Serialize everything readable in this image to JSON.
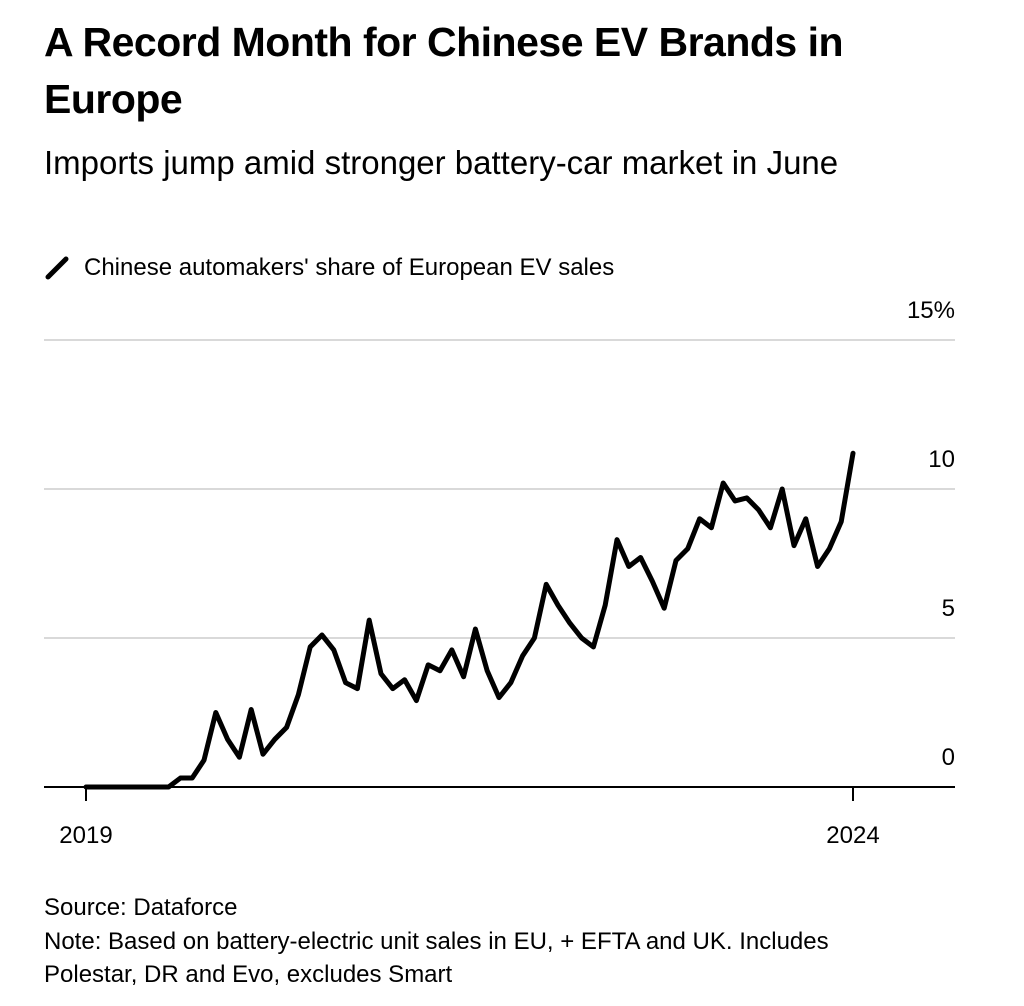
{
  "chart_data": {
    "type": "line",
    "title": "A Record Month for Chinese EV Brands in Europe",
    "subtitle": "Imports jump amid stronger battery-car market in June",
    "source": "Source: Dataforce",
    "note": "Note: Based on battery-electric unit sales in EU, + EFTA and UK. Includes Polestar, DR and Evo, excludes Smart",
    "categories": [
      "2019",
      null,
      null,
      null,
      null,
      null,
      null,
      null,
      null,
      null,
      null,
      null,
      null,
      null,
      null,
      null,
      null,
      null,
      null,
      null,
      null,
      null,
      null,
      null,
      null,
      null,
      null,
      null,
      null,
      null,
      null,
      null,
      null,
      null,
      null,
      null,
      null,
      null,
      null,
      null,
      null,
      null,
      null,
      null,
      null,
      null,
      null,
      null,
      null,
      null,
      null,
      null,
      null,
      null,
      null,
      null,
      null,
      null,
      null,
      null,
      null,
      null,
      null,
      null,
      null,
      "2024"
    ],
    "series": [
      {
        "name": "Chinese automakers' share of European EV sales",
        "color": "#000000",
        "values": [
          0,
          0,
          0,
          0,
          0,
          0,
          0,
          0,
          0.3,
          0.3,
          0.9,
          2.5,
          1.6,
          1.0,
          2.6,
          1.1,
          1.6,
          2.0,
          3.1,
          4.7,
          5.1,
          4.6,
          3.5,
          3.3,
          5.6,
          3.8,
          3.3,
          3.6,
          2.9,
          4.1,
          3.9,
          4.6,
          3.7,
          5.3,
          3.9,
          3.0,
          3.5,
          4.4,
          5.0,
          6.8,
          6.1,
          5.5,
          5.0,
          4.7,
          6.1,
          8.3,
          7.4,
          7.7,
          6.9,
          6.0,
          7.6,
          8.0,
          9.0,
          8.7,
          10.2,
          9.6,
          9.7,
          9.3,
          8.7,
          10.0,
          8.1,
          9.0,
          7.4,
          8.0,
          8.9,
          11.2
        ]
      }
    ],
    "ylim": [
      0,
      15
    ],
    "yticks": [
      0,
      5,
      10,
      {
        "value": 15,
        "label": "15%"
      }
    ],
    "grid": true
  }
}
